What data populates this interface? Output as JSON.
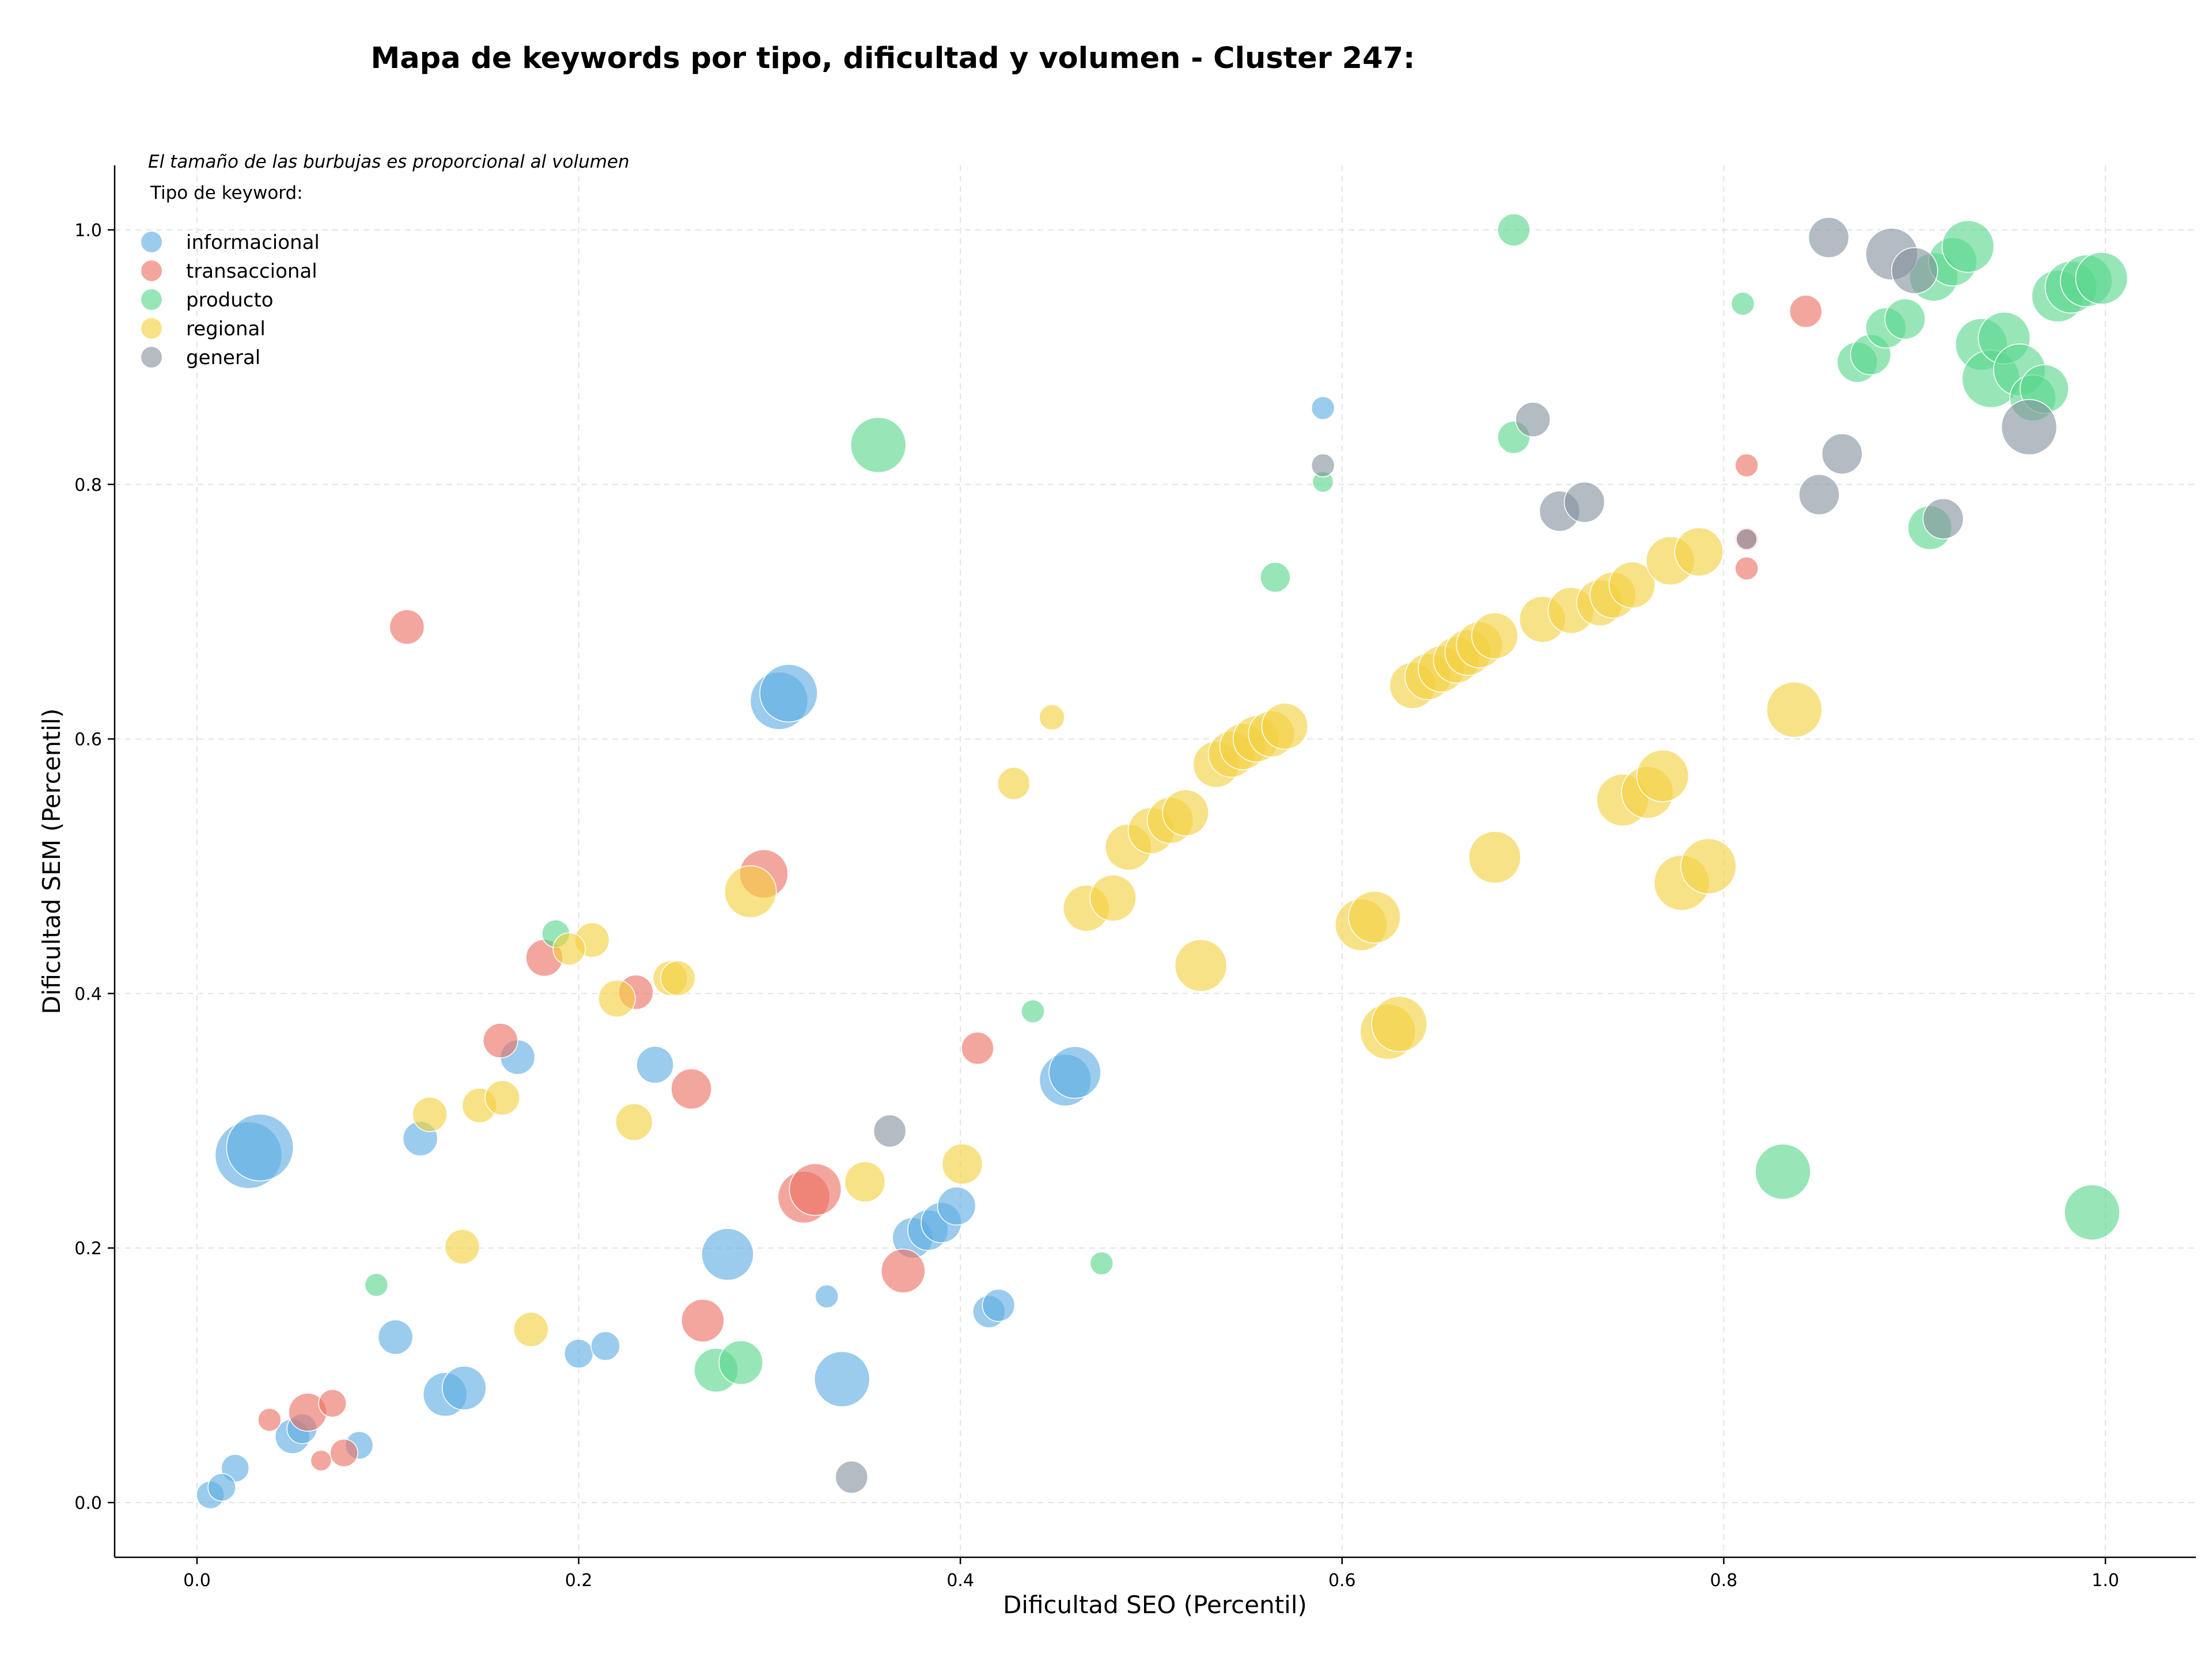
{
  "chart_data": {
    "type": "scatter",
    "title": "Mapa de keywords por tipo, dificultad y volumen - Cluster 247:",
    "xlabel": "Dificultad SEO (Percentil)",
    "ylabel": "Dificultad SEM (Percentil)",
    "xlim": [
      -0.04,
      1.05
    ],
    "ylim": [
      -0.04,
      1.05
    ],
    "xticks": [
      "0.0",
      "0.2",
      "0.4",
      "0.6",
      "0.8",
      "1.0"
    ],
    "yticks": [
      "0.0",
      "0.2",
      "0.4",
      "0.6",
      "0.8",
      "1.0"
    ],
    "grid": true,
    "annotation": "El tamaño de las burbujas es proporcional al volumen",
    "legend": {
      "title": "Tipo de keyword:",
      "placement": "top-left",
      "entries": [
        "informacional",
        "transaccional",
        "producto",
        "regional",
        "general"
      ]
    },
    "series": [
      {
        "name": "informacional",
        "color": "#5DADE2",
        "points": [
          {
            "x": 0.027,
            "y": 0.273,
            "size": 58
          },
          {
            "x": 0.033,
            "y": 0.279,
            "size": 58
          },
          {
            "x": 0.305,
            "y": 0.63,
            "size": 50
          },
          {
            "x": 0.31,
            "y": 0.636,
            "size": 50
          },
          {
            "x": 0.278,
            "y": 0.195,
            "size": 45
          },
          {
            "x": 0.338,
            "y": 0.097,
            "size": 48
          },
          {
            "x": 0.455,
            "y": 0.332,
            "size": 45
          },
          {
            "x": 0.46,
            "y": 0.338,
            "size": 45
          },
          {
            "x": 0.13,
            "y": 0.085,
            "size": 38
          },
          {
            "x": 0.14,
            "y": 0.09,
            "size": 38
          },
          {
            "x": 0.117,
            "y": 0.286,
            "size": 30
          },
          {
            "x": 0.168,
            "y": 0.35,
            "size": 30
          },
          {
            "x": 0.24,
            "y": 0.344,
            "size": 32
          },
          {
            "x": 0.104,
            "y": 0.13,
            "size": 30
          },
          {
            "x": 0.2,
            "y": 0.117,
            "size": 25
          },
          {
            "x": 0.214,
            "y": 0.123,
            "size": 25
          },
          {
            "x": 0.05,
            "y": 0.052,
            "size": 30
          },
          {
            "x": 0.055,
            "y": 0.058,
            "size": 26
          },
          {
            "x": 0.02,
            "y": 0.027,
            "size": 24
          },
          {
            "x": 0.085,
            "y": 0.045,
            "size": 24
          },
          {
            "x": 0.007,
            "y": 0.006,
            "size": 24
          },
          {
            "x": 0.013,
            "y": 0.012,
            "size": 24
          },
          {
            "x": 0.33,
            "y": 0.162,
            "size": 20
          },
          {
            "x": 0.415,
            "y": 0.15,
            "size": 28
          },
          {
            "x": 0.42,
            "y": 0.155,
            "size": 28
          },
          {
            "x": 0.375,
            "y": 0.208,
            "size": 35
          },
          {
            "x": 0.383,
            "y": 0.214,
            "size": 35
          },
          {
            "x": 0.39,
            "y": 0.22,
            "size": 35
          },
          {
            "x": 0.398,
            "y": 0.233,
            "size": 33
          },
          {
            "x": 0.59,
            "y": 0.86,
            "size": 20
          }
        ]
      },
      {
        "name": "transaccional",
        "color": "#EC7063",
        "points": [
          {
            "x": 0.11,
            "y": 0.688,
            "size": 30
          },
          {
            "x": 0.297,
            "y": 0.494,
            "size": 42
          },
          {
            "x": 0.182,
            "y": 0.428,
            "size": 32
          },
          {
            "x": 0.23,
            "y": 0.401,
            "size": 30
          },
          {
            "x": 0.159,
            "y": 0.363,
            "size": 30
          },
          {
            "x": 0.259,
            "y": 0.325,
            "size": 35
          },
          {
            "x": 0.318,
            "y": 0.24,
            "size": 45
          },
          {
            "x": 0.324,
            "y": 0.246,
            "size": 45
          },
          {
            "x": 0.37,
            "y": 0.182,
            "size": 38
          },
          {
            "x": 0.265,
            "y": 0.143,
            "size": 37
          },
          {
            "x": 0.409,
            "y": 0.357,
            "size": 28
          },
          {
            "x": 0.058,
            "y": 0.071,
            "size": 33
          },
          {
            "x": 0.071,
            "y": 0.078,
            "size": 24
          },
          {
            "x": 0.038,
            "y": 0.065,
            "size": 20
          },
          {
            "x": 0.077,
            "y": 0.039,
            "size": 24
          },
          {
            "x": 0.065,
            "y": 0.033,
            "size": 18
          },
          {
            "x": 0.843,
            "y": 0.936,
            "size": 28
          },
          {
            "x": 0.812,
            "y": 0.815,
            "size": 20
          },
          {
            "x": 0.812,
            "y": 0.757,
            "size": 20
          },
          {
            "x": 0.812,
            "y": 0.734,
            "size": 20
          }
        ]
      },
      {
        "name": "producto",
        "color": "#58D68D",
        "points": [
          {
            "x": 0.69,
            "y": 1.0,
            "size": 28
          },
          {
            "x": 0.81,
            "y": 0.942,
            "size": 20
          },
          {
            "x": 0.357,
            "y": 0.831,
            "size": 48
          },
          {
            "x": 0.69,
            "y": 0.837,
            "size": 28
          },
          {
            "x": 0.59,
            "y": 0.802,
            "size": 18
          },
          {
            "x": 0.565,
            "y": 0.727,
            "size": 26
          },
          {
            "x": 0.831,
            "y": 0.26,
            "size": 48
          },
          {
            "x": 0.993,
            "y": 0.228,
            "size": 48
          },
          {
            "x": 0.188,
            "y": 0.447,
            "size": 24
          },
          {
            "x": 0.438,
            "y": 0.386,
            "size": 20
          },
          {
            "x": 0.474,
            "y": 0.188,
            "size": 20
          },
          {
            "x": 0.094,
            "y": 0.171,
            "size": 20
          },
          {
            "x": 0.272,
            "y": 0.104,
            "size": 38
          },
          {
            "x": 0.285,
            "y": 0.11,
            "size": 38
          },
          {
            "x": 0.908,
            "y": 0.766,
            "size": 38
          },
          {
            "x": 0.87,
            "y": 0.896,
            "size": 35
          },
          {
            "x": 0.877,
            "y": 0.902,
            "size": 35
          },
          {
            "x": 0.885,
            "y": 0.923,
            "size": 35
          },
          {
            "x": 0.895,
            "y": 0.93,
            "size": 35
          },
          {
            "x": 0.91,
            "y": 0.963,
            "size": 42
          },
          {
            "x": 0.92,
            "y": 0.975,
            "size": 42
          },
          {
            "x": 0.928,
            "y": 0.987,
            "size": 45
          },
          {
            "x": 0.935,
            "y": 0.91,
            "size": 45
          },
          {
            "x": 0.94,
            "y": 0.883,
            "size": 50
          },
          {
            "x": 0.947,
            "y": 0.915,
            "size": 45
          },
          {
            "x": 0.955,
            "y": 0.89,
            "size": 45
          },
          {
            "x": 0.962,
            "y": 0.868,
            "size": 40
          },
          {
            "x": 0.968,
            "y": 0.875,
            "size": 42
          },
          {
            "x": 0.975,
            "y": 0.948,
            "size": 45
          },
          {
            "x": 0.982,
            "y": 0.955,
            "size": 45
          },
          {
            "x": 0.99,
            "y": 0.96,
            "size": 45
          },
          {
            "x": 0.998,
            "y": 0.962,
            "size": 45
          }
        ]
      },
      {
        "name": "regional",
        "color": "#F4D03F",
        "points": [
          {
            "x": 0.448,
            "y": 0.617,
            "size": 22
          },
          {
            "x": 0.428,
            "y": 0.565,
            "size": 28
          },
          {
            "x": 0.29,
            "y": 0.48,
            "size": 45
          },
          {
            "x": 0.207,
            "y": 0.442,
            "size": 30
          },
          {
            "x": 0.195,
            "y": 0.435,
            "size": 28
          },
          {
            "x": 0.22,
            "y": 0.396,
            "size": 32
          },
          {
            "x": 0.248,
            "y": 0.412,
            "size": 30
          },
          {
            "x": 0.252,
            "y": 0.412,
            "size": 30
          },
          {
            "x": 0.122,
            "y": 0.305,
            "size": 30
          },
          {
            "x": 0.148,
            "y": 0.312,
            "size": 30
          },
          {
            "x": 0.16,
            "y": 0.318,
            "size": 30
          },
          {
            "x": 0.229,
            "y": 0.299,
            "size": 32
          },
          {
            "x": 0.35,
            "y": 0.252,
            "size": 35
          },
          {
            "x": 0.401,
            "y": 0.266,
            "size": 35
          },
          {
            "x": 0.139,
            "y": 0.201,
            "size": 30
          },
          {
            "x": 0.175,
            "y": 0.136,
            "size": 30
          },
          {
            "x": 0.466,
            "y": 0.467,
            "size": 40
          },
          {
            "x": 0.48,
            "y": 0.475,
            "size": 40
          },
          {
            "x": 0.526,
            "y": 0.422,
            "size": 45
          },
          {
            "x": 0.61,
            "y": 0.454,
            "size": 45
          },
          {
            "x": 0.617,
            "y": 0.46,
            "size": 45
          },
          {
            "x": 0.624,
            "y": 0.37,
            "size": 48
          },
          {
            "x": 0.63,
            "y": 0.376,
            "size": 48
          },
          {
            "x": 0.68,
            "y": 0.507,
            "size": 45
          },
          {
            "x": 0.747,
            "y": 0.552,
            "size": 45
          },
          {
            "x": 0.76,
            "y": 0.558,
            "size": 45
          },
          {
            "x": 0.768,
            "y": 0.571,
            "size": 45
          },
          {
            "x": 0.778,
            "y": 0.487,
            "size": 48
          },
          {
            "x": 0.792,
            "y": 0.5,
            "size": 48
          },
          {
            "x": 0.837,
            "y": 0.623,
            "size": 48
          },
          {
            "x": 0.488,
            "y": 0.515,
            "size": 40
          },
          {
            "x": 0.5,
            "y": 0.528,
            "size": 40
          },
          {
            "x": 0.51,
            "y": 0.536,
            "size": 40
          },
          {
            "x": 0.518,
            "y": 0.542,
            "size": 40
          },
          {
            "x": 0.534,
            "y": 0.58,
            "size": 40
          },
          {
            "x": 0.542,
            "y": 0.588,
            "size": 40
          },
          {
            "x": 0.548,
            "y": 0.594,
            "size": 40
          },
          {
            "x": 0.555,
            "y": 0.6,
            "size": 40
          },
          {
            "x": 0.563,
            "y": 0.604,
            "size": 40
          },
          {
            "x": 0.57,
            "y": 0.61,
            "size": 40
          },
          {
            "x": 0.637,
            "y": 0.642,
            "size": 40
          },
          {
            "x": 0.645,
            "y": 0.649,
            "size": 40
          },
          {
            "x": 0.652,
            "y": 0.655,
            "size": 40
          },
          {
            "x": 0.66,
            "y": 0.662,
            "size": 40
          },
          {
            "x": 0.666,
            "y": 0.668,
            "size": 40
          },
          {
            "x": 0.672,
            "y": 0.674,
            "size": 40
          },
          {
            "x": 0.68,
            "y": 0.681,
            "size": 40
          },
          {
            "x": 0.705,
            "y": 0.694,
            "size": 40
          },
          {
            "x": 0.72,
            "y": 0.701,
            "size": 40
          },
          {
            "x": 0.735,
            "y": 0.707,
            "size": 40
          },
          {
            "x": 0.742,
            "y": 0.713,
            "size": 40
          },
          {
            "x": 0.752,
            "y": 0.721,
            "size": 40
          },
          {
            "x": 0.772,
            "y": 0.74,
            "size": 42
          },
          {
            "x": 0.787,
            "y": 0.747,
            "size": 42
          }
        ]
      },
      {
        "name": "general",
        "color": "#85929E",
        "points": [
          {
            "x": 0.343,
            "y": 0.02,
            "size": 28
          },
          {
            "x": 0.363,
            "y": 0.292,
            "size": 28
          },
          {
            "x": 0.59,
            "y": 0.815,
            "size": 20
          },
          {
            "x": 0.7,
            "y": 0.851,
            "size": 30
          },
          {
            "x": 0.714,
            "y": 0.779,
            "size": 35
          },
          {
            "x": 0.727,
            "y": 0.786,
            "size": 35
          },
          {
            "x": 0.812,
            "y": 0.757,
            "size": 18
          },
          {
            "x": 0.85,
            "y": 0.792,
            "size": 35
          },
          {
            "x": 0.862,
            "y": 0.824,
            "size": 35
          },
          {
            "x": 0.855,
            "y": 0.994,
            "size": 35
          },
          {
            "x": 0.888,
            "y": 0.981,
            "size": 45
          },
          {
            "x": 0.9,
            "y": 0.968,
            "size": 40
          },
          {
            "x": 0.915,
            "y": 0.773,
            "size": 35
          },
          {
            "x": 0.96,
            "y": 0.845,
            "size": 48
          }
        ]
      }
    ]
  }
}
